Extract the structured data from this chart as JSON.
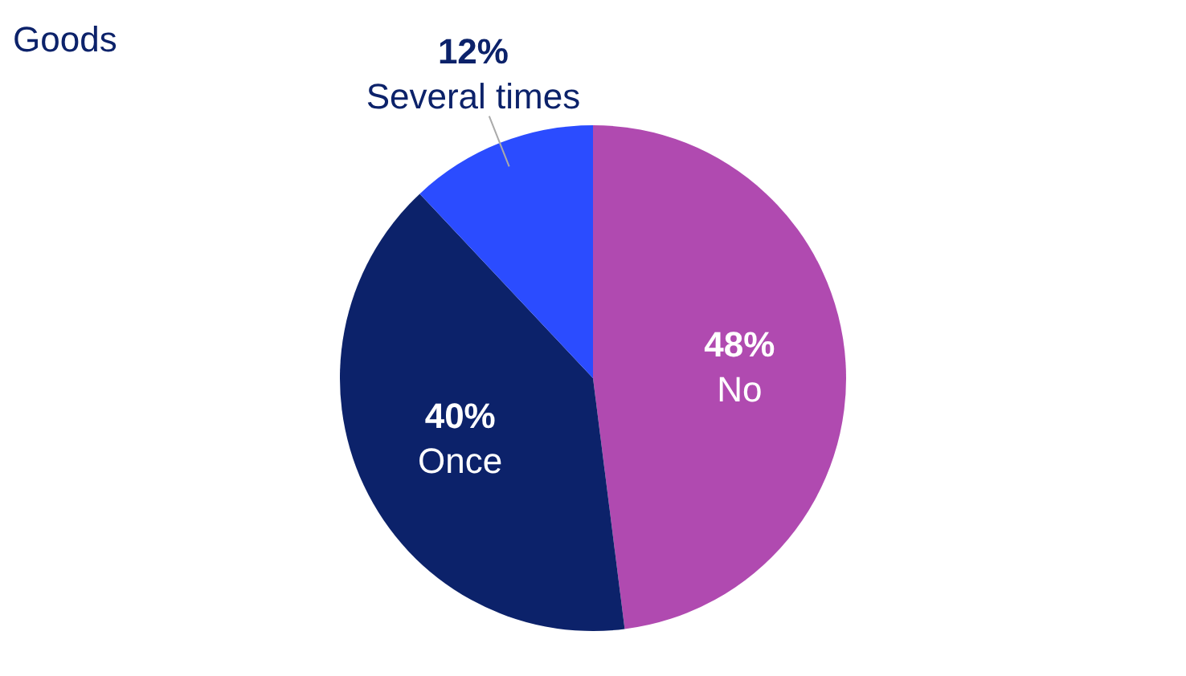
{
  "chart_data": {
    "type": "pie",
    "categories": [
      "No",
      "Once",
      "Several times"
    ],
    "values": [
      48,
      40,
      12
    ],
    "colors": [
      "#b04ab0",
      "#0c226a",
      "#2b4cff"
    ],
    "value_labels": [
      "48%",
      "40%",
      "12%"
    ],
    "legend": false,
    "annotations": [
      "Goods"
    ]
  }
}
